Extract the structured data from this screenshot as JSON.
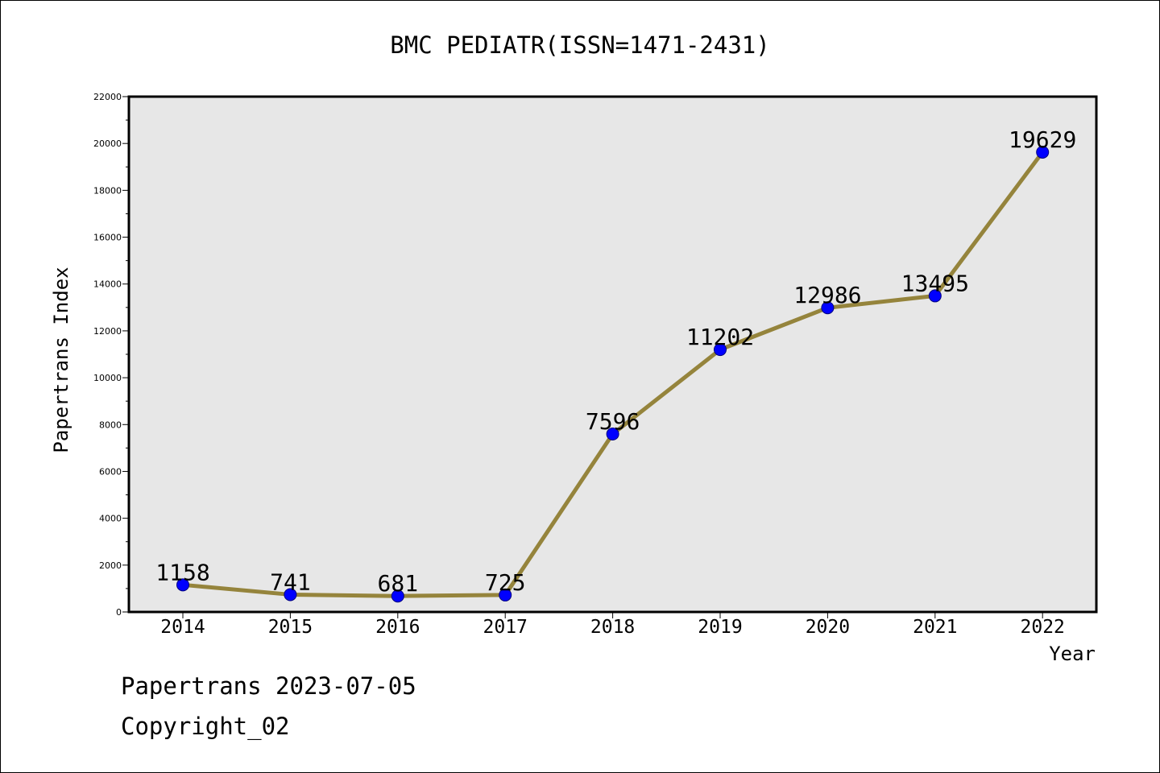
{
  "footer": {
    "line1": "Papertrans 2023-07-05",
    "line2": "Copyright_02"
  },
  "chart_data": {
    "type": "line",
    "title": "BMC PEDIATR(ISSN=1471-2431)",
    "xlabel": "Year",
    "ylabel": "Papertrans Index",
    "categories": [
      "2014",
      "2015",
      "2016",
      "2017",
      "2018",
      "2019",
      "2020",
      "2021",
      "2022"
    ],
    "series": [
      {
        "values": [
          1158,
          741,
          681,
          725,
          7596,
          11202,
          12986,
          13495,
          19629
        ]
      }
    ],
    "data_labels": [
      "1158",
      "741",
      "681",
      "725",
      "7596",
      "11202",
      "12986",
      "13495",
      "19629"
    ],
    "y_ticks": [
      "0",
      "2000",
      "4000",
      "6000",
      "8000",
      "10000",
      "12000",
      "14000",
      "16000",
      "18000",
      "20000",
      "22000"
    ],
    "ylim": [
      0,
      22000
    ],
    "grid": false,
    "legend": "none",
    "colors": {
      "plot_background": "#e7e7e7",
      "line": "#95843c",
      "marker": "#0000ff",
      "marker_edge": "#000080"
    }
  }
}
